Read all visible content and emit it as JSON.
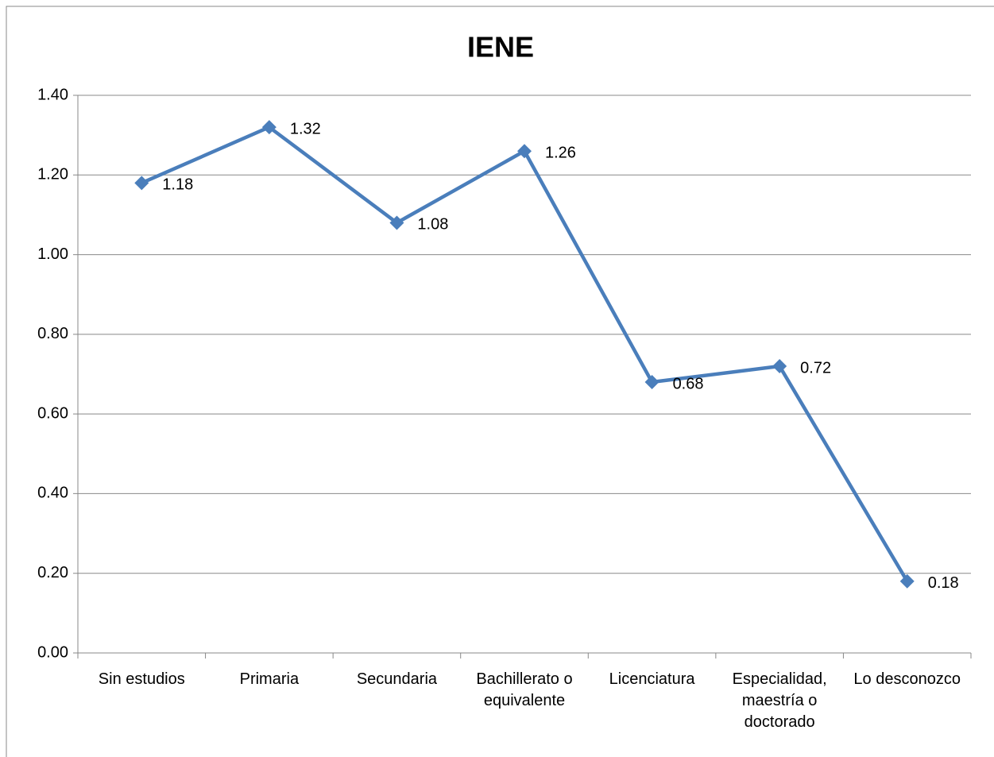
{
  "chart_data": {
    "type": "line",
    "title": "IENE",
    "categories": [
      "Sin estudios",
      "Primaria",
      "Secundaria",
      "Bachillerato o equivalente",
      "Licenciatura",
      "Especialidad, maestría o doctorado",
      "Lo desconozco"
    ],
    "series": [
      {
        "name": "IENE",
        "color": "#4a7ebb",
        "values": [
          1.18,
          1.32,
          1.08,
          1.26,
          0.68,
          0.72,
          0.18
        ]
      }
    ],
    "ylim": [
      0,
      1.4
    ],
    "yticks": [
      {
        "value": 0,
        "label": "0.00"
      },
      {
        "value": 0.2,
        "label": "0.20"
      },
      {
        "value": 0.4,
        "label": "0.40"
      },
      {
        "value": 0.6,
        "label": "0.60"
      },
      {
        "value": 0.8,
        "label": "0.80"
      },
      {
        "value": 1.0,
        "label": "1.00"
      },
      {
        "value": 1.2,
        "label": "1.20"
      },
      {
        "value": 1.4,
        "label": "1.40"
      }
    ],
    "grid": true
  }
}
